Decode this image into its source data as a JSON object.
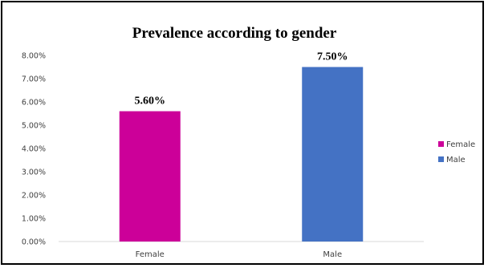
{
  "chart_data": {
    "type": "bar",
    "title": "Prevalence according to gender",
    "categories": [
      "Female",
      "Male"
    ],
    "values": [
      5.6,
      7.5
    ],
    "data_labels": [
      "5.60%",
      "7.50%"
    ],
    "colors": [
      "#cc0099",
      "#4472c4"
    ],
    "ylim": [
      0,
      8
    ],
    "yticks": [
      0,
      1,
      2,
      3,
      4,
      5,
      6,
      7,
      8
    ],
    "ytick_labels": [
      "0.00%",
      "1.00%",
      "2.00%",
      "3.00%",
      "4.00%",
      "5.00%",
      "6.00%",
      "7.00%",
      "8.00%"
    ],
    "grid": false,
    "legend": {
      "position": "right",
      "entries": [
        "Female",
        "Male"
      ]
    }
  }
}
